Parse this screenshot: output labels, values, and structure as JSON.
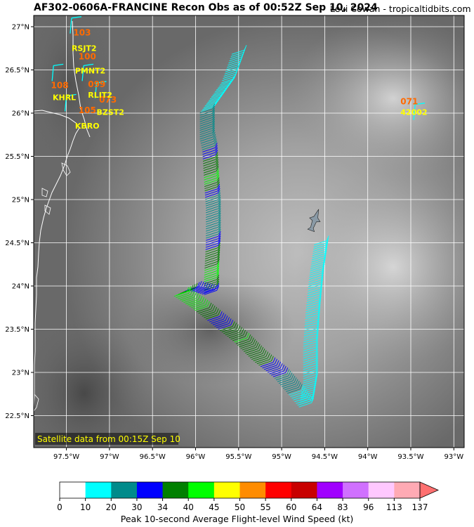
{
  "title": "AF302-0606A-FRANCINE Recon Obs as of 00:52Z Sep 10, 2024",
  "credit": "Levi Cowan - tropicaltidbits.com",
  "satellite_note": "Satellite data from 00:15Z Sep 10",
  "colorbar_label": "Peak 10-second Average Flight-level Wind Speed (kt)",
  "colorbar": {
    "ticks": [
      "0",
      "10",
      "20",
      "30",
      "34",
      "40",
      "45",
      "50",
      "55",
      "60",
      "64",
      "83",
      "96",
      "113",
      "137"
    ],
    "colors": [
      "#ffffff",
      "#00ffff",
      "#008b8b",
      "#0000ff",
      "#008000",
      "#00ff00",
      "#ffff00",
      "#ff8c00",
      "#ff0000",
      "#c80000",
      "#a000ff",
      "#d070ff",
      "#ffc8ff",
      "#ffaab4"
    ],
    "extend_color": "#ff7070"
  },
  "axes": {
    "lon_min": -97.88,
    "lon_max": -92.88,
    "lat_min": 22.13,
    "lat_max": 27.13,
    "lon_ticks": [
      -97.5,
      -97,
      -96.5,
      -96,
      -95.5,
      -95,
      -94.5,
      -94,
      -93.5,
      -93
    ],
    "lon_labels": [
      "97.5°W",
      "97°W",
      "96.5°W",
      "96°W",
      "95.5°W",
      "95°W",
      "94.5°W",
      "94°W",
      "93.5°W",
      "93°W"
    ],
    "lat_ticks": [
      27,
      26.5,
      26,
      25.5,
      25,
      24.5,
      24,
      23.5,
      23,
      22.5
    ],
    "lat_labels": [
      "27°N",
      "26.5°N",
      "26°N",
      "25.5°N",
      "25°N",
      "24.5°N",
      "24°N",
      "23.5°N",
      "23°N",
      "22.5°N"
    ]
  },
  "stations": [
    {
      "id": "RSJT2",
      "lon": -97.44,
      "lat": 26.72
    },
    {
      "id": "PMNT2",
      "lon": -97.4,
      "lat": 26.46
    },
    {
      "id": "RLIT2",
      "lon": -97.25,
      "lat": 26.18
    },
    {
      "id": "KHRL",
      "lon": -97.66,
      "lat": 26.15
    },
    {
      "id": "BZST2",
      "lon": -97.15,
      "lat": 25.98
    },
    {
      "id": "KBRO",
      "lon": -97.4,
      "lat": 25.82
    },
    {
      "id": "42002",
      "lon": -93.62,
      "lat": 25.98
    }
  ],
  "pressure_obs": [
    {
      "value": "103",
      "lon": -97.42,
      "lat": 26.9
    },
    {
      "value": "100",
      "lon": -97.36,
      "lat": 26.62
    },
    {
      "value": "099",
      "lon": -97.25,
      "lat": 26.3
    },
    {
      "value": "108",
      "lon": -97.68,
      "lat": 26.29
    },
    {
      "value": "073",
      "lon": -97.12,
      "lat": 26.12
    },
    {
      "value": "105",
      "lon": -97.36,
      "lat": 26.0
    },
    {
      "value": "071",
      "lon": -93.62,
      "lat": 26.1
    }
  ],
  "flight_track": [
    {
      "lon": -95.58,
      "lat": 26.68,
      "kt": 18
    },
    {
      "lon": -95.7,
      "lat": 26.35,
      "kt": 18
    },
    {
      "lon": -95.95,
      "lat": 26.0,
      "kt": 20
    },
    {
      "lon": -95.95,
      "lat": 25.7,
      "kt": 22
    },
    {
      "lon": -95.92,
      "lat": 25.55,
      "kt": 31
    },
    {
      "lon": -95.9,
      "lat": 25.2,
      "kt": 42
    },
    {
      "lon": -95.88,
      "lat": 24.9,
      "kt": 22
    },
    {
      "lon": -95.88,
      "lat": 24.5,
      "kt": 31
    },
    {
      "lon": -95.9,
      "lat": 24.1,
      "kt": 43
    },
    {
      "lon": -95.9,
      "lat": 23.9,
      "kt": 31
    },
    {
      "lon": -96.1,
      "lat": 23.95,
      "kt": 31
    },
    {
      "lon": -96.25,
      "lat": 23.88,
      "kt": 42
    },
    {
      "lon": -96.05,
      "lat": 23.75,
      "kt": 42
    },
    {
      "lon": -95.8,
      "lat": 23.55,
      "kt": 31
    },
    {
      "lon": -95.55,
      "lat": 23.35,
      "kt": 40
    },
    {
      "lon": -95.35,
      "lat": 23.15,
      "kt": 36
    },
    {
      "lon": -95.1,
      "lat": 22.95,
      "kt": 31
    },
    {
      "lon": -94.9,
      "lat": 22.72,
      "kt": 18
    },
    {
      "lon": -94.8,
      "lat": 22.6,
      "kt": 14
    },
    {
      "lon": -94.75,
      "lat": 22.9,
      "kt": 14
    },
    {
      "lon": -94.75,
      "lat": 23.3,
      "kt": 16
    },
    {
      "lon": -94.72,
      "lat": 23.7,
      "kt": 16
    },
    {
      "lon": -94.68,
      "lat": 24.1,
      "kt": 18
    },
    {
      "lon": -94.62,
      "lat": 24.5,
      "kt": 18
    }
  ],
  "aircraft_position": {
    "lon": -94.62,
    "lat": 24.75
  }
}
